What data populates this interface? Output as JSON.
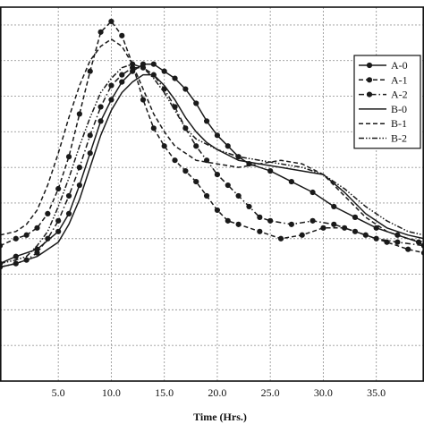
{
  "chart_data": {
    "type": "line",
    "title": "",
    "xlabel": "Time (Hrs.)",
    "ylabel": "",
    "xlim": [
      -0.5,
      39.5
    ],
    "ylim": [
      0,
      10.5
    ],
    "grid": true,
    "x_ticks": [
      5,
      10,
      15,
      20,
      25,
      30,
      35
    ],
    "x_tick_labels": [
      "5.0",
      "10.0",
      "15.0",
      "20.0",
      "25.0",
      "30.0",
      "35.0"
    ],
    "y_gridlines": [
      1,
      2,
      3,
      4,
      5,
      6,
      7,
      8,
      9,
      10
    ],
    "legend_position": "top-right",
    "colors": {
      "series": "#1a1a1a",
      "grid": "#9a9a9a",
      "frame": "#111111"
    },
    "series": [
      {
        "name": "A-0",
        "line": "solid",
        "marker": true,
        "points": [
          [
            -0.5,
            3.3
          ],
          [
            1,
            3.5
          ],
          [
            3,
            3.7
          ],
          [
            5,
            4.2
          ],
          [
            6,
            4.7
          ],
          [
            7,
            5.5
          ],
          [
            8,
            6.4
          ],
          [
            9,
            7.3
          ],
          [
            10,
            7.9
          ],
          [
            11,
            8.4
          ],
          [
            12,
            8.7
          ],
          [
            13,
            8.9
          ],
          [
            14,
            8.9
          ],
          [
            15,
            8.7
          ],
          [
            16,
            8.5
          ],
          [
            17,
            8.2
          ],
          [
            18,
            7.8
          ],
          [
            19,
            7.3
          ],
          [
            20,
            6.9
          ],
          [
            21,
            6.6
          ],
          [
            22,
            6.3
          ],
          [
            23,
            6.1
          ],
          [
            25,
            5.9
          ],
          [
            27,
            5.6
          ],
          [
            29,
            5.3
          ],
          [
            31,
            4.9
          ],
          [
            33,
            4.6
          ],
          [
            35,
            4.3
          ],
          [
            37,
            4.1
          ],
          [
            39,
            3.9
          ],
          [
            39.5,
            3.8
          ]
        ]
      },
      {
        "name": "A-1",
        "line": "dashed",
        "marker": true,
        "points": [
          [
            -0.5,
            3.8
          ],
          [
            1,
            4.0
          ],
          [
            2,
            4.1
          ],
          [
            3,
            4.3
          ],
          [
            4,
            4.7
          ],
          [
            5,
            5.4
          ],
          [
            6,
            6.3
          ],
          [
            7,
            7.5
          ],
          [
            8,
            8.7
          ],
          [
            9,
            9.8
          ],
          [
            10,
            10.1
          ],
          [
            11,
            9.7
          ],
          [
            12,
            8.9
          ],
          [
            13,
            7.9
          ],
          [
            14,
            7.1
          ],
          [
            15,
            6.6
          ],
          [
            16,
            6.2
          ],
          [
            17,
            5.9
          ],
          [
            18,
            5.6
          ],
          [
            19,
            5.2
          ],
          [
            20,
            4.8
          ],
          [
            21,
            4.5
          ],
          [
            22,
            4.4
          ],
          [
            24,
            4.2
          ],
          [
            26,
            4.0
          ],
          [
            28,
            4.1
          ],
          [
            30,
            4.3
          ],
          [
            32,
            4.3
          ],
          [
            34,
            4.1
          ],
          [
            36,
            3.9
          ],
          [
            38,
            3.7
          ],
          [
            39.5,
            3.6
          ]
        ]
      },
      {
        "name": "A-2",
        "line": "dash-dot",
        "marker": true,
        "points": [
          [
            -0.5,
            3.2
          ],
          [
            1,
            3.3
          ],
          [
            2,
            3.4
          ],
          [
            3,
            3.6
          ],
          [
            4,
            4.0
          ],
          [
            5,
            4.5
          ],
          [
            6,
            5.2
          ],
          [
            7,
            6.0
          ],
          [
            8,
            6.9
          ],
          [
            9,
            7.7
          ],
          [
            10,
            8.3
          ],
          [
            11,
            8.6
          ],
          [
            12,
            8.8
          ],
          [
            13,
            8.8
          ],
          [
            14,
            8.6
          ],
          [
            15,
            8.2
          ],
          [
            16,
            7.7
          ],
          [
            17,
            7.1
          ],
          [
            18,
            6.6
          ],
          [
            19,
            6.2
          ],
          [
            20,
            5.8
          ],
          [
            21,
            5.5
          ],
          [
            22,
            5.2
          ],
          [
            23,
            4.9
          ],
          [
            24,
            4.6
          ],
          [
            25,
            4.5
          ],
          [
            27,
            4.4
          ],
          [
            29,
            4.5
          ],
          [
            31,
            4.4
          ],
          [
            33,
            4.2
          ],
          [
            35,
            4.0
          ],
          [
            37,
            3.9
          ],
          [
            39.5,
            3.8
          ]
        ]
      },
      {
        "name": "B-0",
        "line": "solid",
        "marker": false,
        "points": [
          [
            -0.5,
            3.2
          ],
          [
            1,
            3.3
          ],
          [
            3,
            3.5
          ],
          [
            5,
            3.9
          ],
          [
            6,
            4.4
          ],
          [
            7,
            5.1
          ],
          [
            8,
            6.0
          ],
          [
            9,
            6.9
          ],
          [
            10,
            7.6
          ],
          [
            11,
            8.1
          ],
          [
            12,
            8.4
          ],
          [
            13,
            8.6
          ],
          [
            14,
            8.6
          ],
          [
            15,
            8.3
          ],
          [
            16,
            7.9
          ],
          [
            17,
            7.4
          ],
          [
            18,
            7.0
          ],
          [
            19,
            6.7
          ],
          [
            20,
            6.5
          ],
          [
            22,
            6.2
          ],
          [
            24,
            6.1
          ],
          [
            26,
            6.0
          ],
          [
            28,
            5.9
          ],
          [
            30,
            5.8
          ],
          [
            32,
            5.3
          ],
          [
            34,
            4.7
          ],
          [
            36,
            4.3
          ],
          [
            38,
            4.1
          ],
          [
            39.5,
            4.0
          ]
        ]
      },
      {
        "name": "B-1",
        "line": "dashed",
        "marker": false,
        "points": [
          [
            -0.5,
            4.1
          ],
          [
            1,
            4.2
          ],
          [
            2,
            4.4
          ],
          [
            3,
            4.8
          ],
          [
            4,
            5.5
          ],
          [
            5,
            6.4
          ],
          [
            6,
            7.4
          ],
          [
            7,
            8.3
          ],
          [
            8,
            9.0
          ],
          [
            9,
            9.4
          ],
          [
            10,
            9.6
          ],
          [
            11,
            9.4
          ],
          [
            12,
            8.9
          ],
          [
            13,
            8.2
          ],
          [
            14,
            7.5
          ],
          [
            15,
            7.0
          ],
          [
            16,
            6.6
          ],
          [
            17,
            6.4
          ],
          [
            18,
            6.2
          ],
          [
            20,
            6.1
          ],
          [
            22,
            6.0
          ],
          [
            24,
            6.1
          ],
          [
            26,
            6.2
          ],
          [
            28,
            6.1
          ],
          [
            30,
            5.8
          ],
          [
            32,
            5.2
          ],
          [
            34,
            4.6
          ],
          [
            36,
            4.2
          ],
          [
            38,
            4.0
          ],
          [
            39.5,
            3.9
          ]
        ]
      },
      {
        "name": "B-2",
        "line": "dash-dot-dot",
        "marker": false,
        "points": [
          [
            -0.5,
            3.3
          ],
          [
            1,
            3.4
          ],
          [
            2,
            3.5
          ],
          [
            3,
            3.8
          ],
          [
            4,
            4.2
          ],
          [
            5,
            4.9
          ],
          [
            6,
            5.7
          ],
          [
            7,
            6.6
          ],
          [
            8,
            7.4
          ],
          [
            9,
            8.1
          ],
          [
            10,
            8.5
          ],
          [
            11,
            8.8
          ],
          [
            12,
            8.9
          ],
          [
            13,
            8.8
          ],
          [
            14,
            8.5
          ],
          [
            15,
            8.1
          ],
          [
            16,
            7.6
          ],
          [
            17,
            7.1
          ],
          [
            18,
            6.8
          ],
          [
            20,
            6.5
          ],
          [
            22,
            6.3
          ],
          [
            24,
            6.2
          ],
          [
            26,
            6.1
          ],
          [
            28,
            6.0
          ],
          [
            30,
            5.8
          ],
          [
            32,
            5.4
          ],
          [
            34,
            4.9
          ],
          [
            36,
            4.5
          ],
          [
            38,
            4.2
          ],
          [
            39.5,
            4.1
          ]
        ]
      }
    ]
  }
}
